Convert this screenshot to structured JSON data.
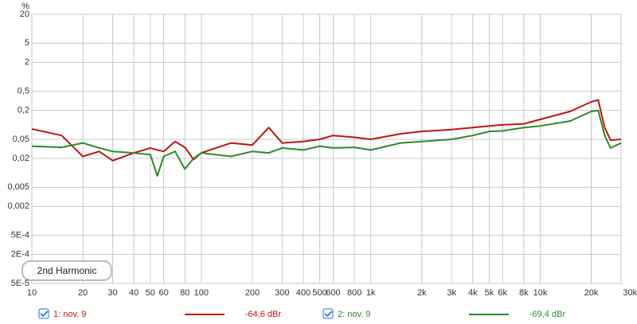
{
  "chart_data": {
    "type": "line",
    "y_unit": "%",
    "log_x": true,
    "log_y": true,
    "grid": true,
    "x": [
      10,
      15,
      20,
      25,
      30,
      40,
      50,
      55,
      60,
      70,
      80,
      90,
      100,
      150,
      200,
      250,
      300,
      400,
      500,
      600,
      800,
      1000,
      1500,
      2000,
      3000,
      4000,
      5000,
      6000,
      8000,
      10000,
      15000,
      20000,
      22000,
      24000,
      26000,
      30000
    ],
    "series": [
      {
        "name": "1: nov. 9",
        "level": "-64,6 dBr",
        "checked": true,
        "color": "#c0140f",
        "values": [
          0.082,
          0.06,
          0.022,
          0.028,
          0.018,
          0.026,
          0.033,
          0.03,
          0.028,
          0.045,
          0.034,
          0.019,
          0.026,
          0.042,
          0.038,
          0.088,
          0.042,
          0.045,
          0.05,
          0.06,
          0.055,
          0.05,
          0.065,
          0.073,
          0.08,
          0.088,
          0.095,
          0.1,
          0.105,
          0.13,
          0.19,
          0.3,
          0.33,
          0.088,
          0.048,
          0.05
        ]
      },
      {
        "name": "2: nov. 9",
        "level": "-69,4 dBr",
        "checked": true,
        "color": "#2a8a2a",
        "values": [
          0.036,
          0.034,
          0.042,
          0.033,
          0.028,
          0.026,
          0.024,
          0.0087,
          0.022,
          0.028,
          0.012,
          0.02,
          0.026,
          0.022,
          0.028,
          0.026,
          0.033,
          0.03,
          0.036,
          0.033,
          0.034,
          0.03,
          0.042,
          0.045,
          0.05,
          0.06,
          0.073,
          0.075,
          0.088,
          0.095,
          0.12,
          0.19,
          0.2,
          0.06,
          0.033,
          0.042
        ]
      }
    ],
    "xlim": [
      10,
      30000
    ],
    "xticks": [
      10,
      20,
      30,
      40,
      50,
      60,
      80,
      100,
      200,
      300,
      400,
      500,
      600,
      800,
      {
        "value": 1000,
        "label": "1k"
      },
      {
        "value": 2000,
        "label": "2k"
      },
      {
        "value": 3000,
        "label": "3k"
      },
      {
        "value": 4000,
        "label": "4k"
      },
      {
        "value": 5000,
        "label": "5k"
      },
      {
        "value": 6000,
        "label": "6k"
      },
      {
        "value": 8000,
        "label": "8k"
      },
      {
        "value": 10000,
        "label": "10k"
      },
      {
        "value": 20000,
        "label": "20k"
      },
      {
        "value": 30000,
        "label": "30kHz"
      }
    ],
    "ylim": [
      5e-05,
      20
    ],
    "yticks": [
      20,
      5,
      2,
      {
        "value": 0.5,
        "label": "0,5"
      },
      {
        "value": 0.2,
        "label": "0,2"
      },
      {
        "value": 0.05,
        "label": "0,05"
      },
      {
        "value": 0.02,
        "label": "0,02"
      },
      {
        "value": 0.005,
        "label": "0,005"
      },
      {
        "value": 0.002,
        "label": "0,002"
      },
      {
        "value": 0.0005,
        "label": "5E-4"
      },
      {
        "value": 0.0002,
        "label": "2E-4"
      },
      {
        "value": 5e-05,
        "label": "5E-5"
      }
    ],
    "button": "2nd Harmonic"
  }
}
